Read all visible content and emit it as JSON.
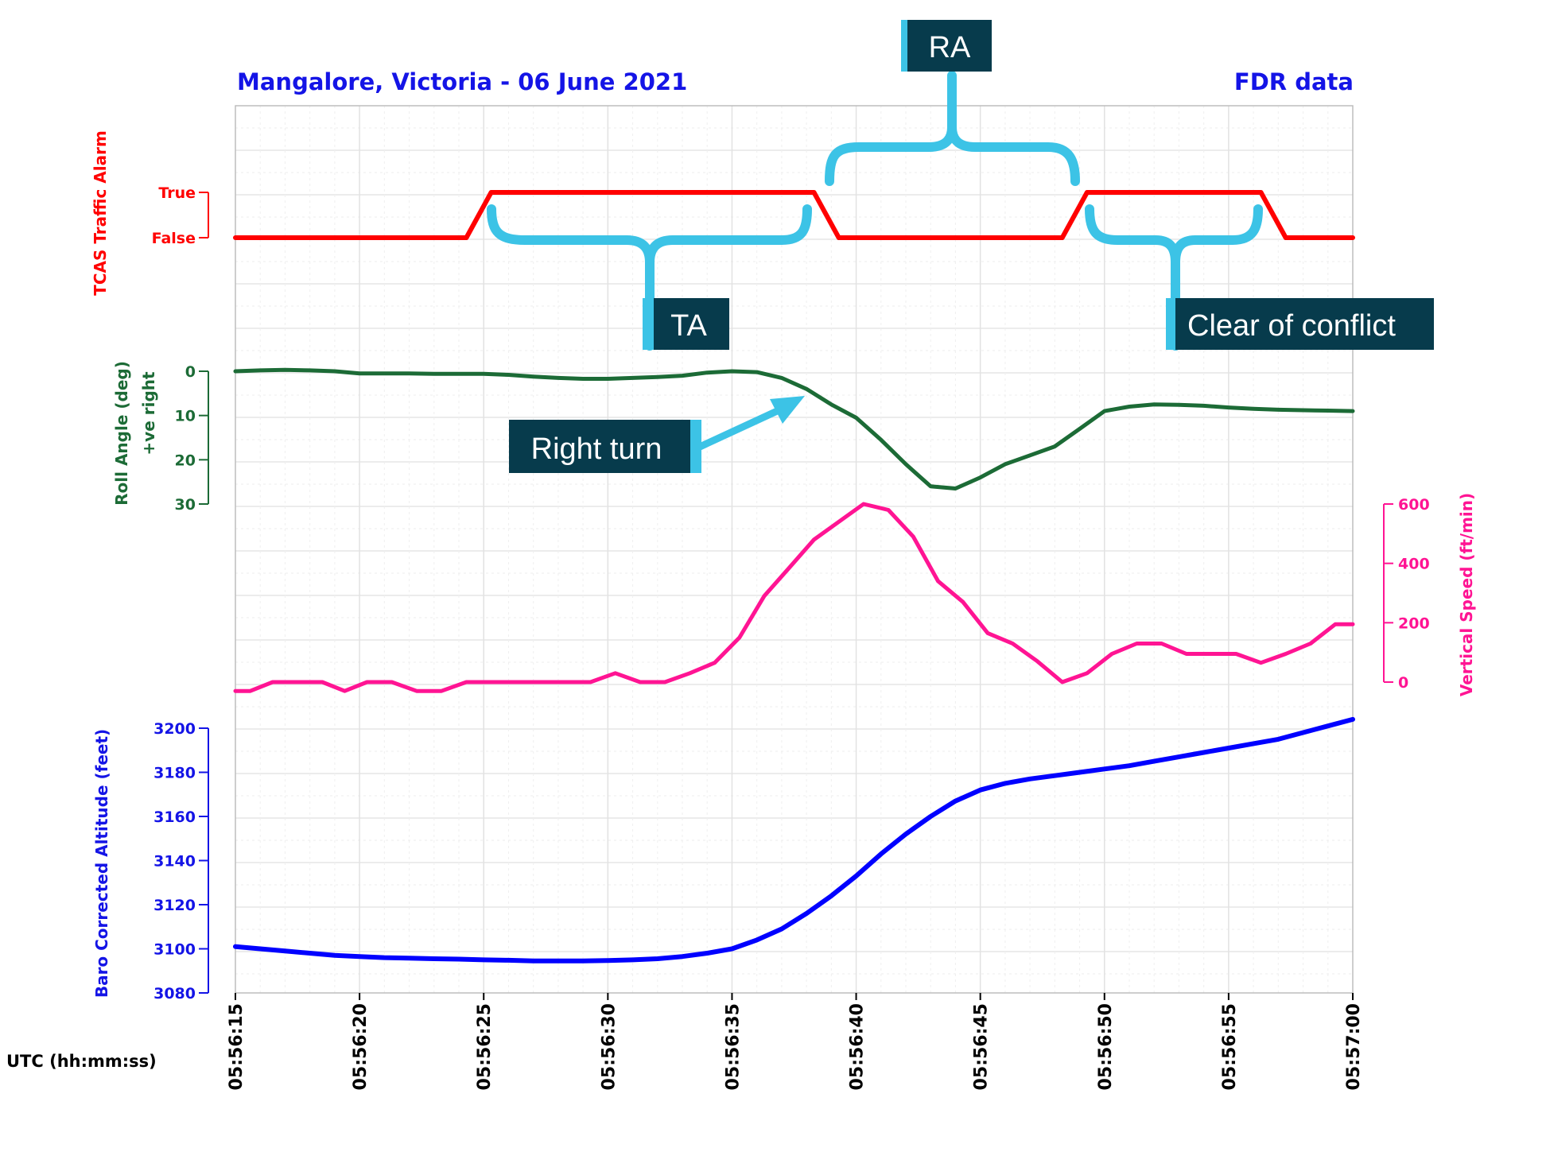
{
  "chart_data": {
    "type": "line",
    "title": "Mangalore, Victoria - 06 June 2021",
    "subtitle": "FDR data",
    "xlabel": "UTC (hh:mm:ss)",
    "x_ticks": [
      "05:56:15",
      "05:56:20",
      "05:56:25",
      "05:56:30",
      "05:56:35",
      "05:56:40",
      "05:56:45",
      "05:56:50",
      "05:56:55",
      "05:57:00"
    ],
    "x_range_seconds": [
      0,
      45
    ],
    "series": [
      {
        "name": "tcas",
        "label": "TCAS Traffic Alarm",
        "color": "#ff0000",
        "states": [
          "True",
          "False"
        ],
        "x": [
          0,
          9.3,
          10.3,
          23.3,
          24.3,
          33.3,
          34.3,
          41.3,
          42.3,
          45
        ],
        "values": [
          0,
          0,
          1,
          1,
          0,
          0,
          1,
          1,
          0,
          0
        ]
      },
      {
        "name": "roll",
        "label": "Roll Angle (deg)",
        "label2": "+ve right",
        "color": "#1c6b36",
        "ylim": [
          0,
          30
        ],
        "y_ticks": [
          "0",
          "10",
          "20",
          "30"
        ],
        "x": [
          0,
          1,
          2,
          3,
          4,
          5,
          6,
          7,
          8,
          9,
          10,
          11,
          12,
          13,
          14,
          15,
          16,
          17,
          18,
          19,
          20,
          21,
          22,
          23,
          24,
          25,
          26,
          27,
          28,
          29,
          30,
          31,
          32,
          33,
          34,
          35,
          36,
          37,
          38,
          39,
          40,
          41,
          42,
          43,
          44,
          45
        ],
        "values": [
          0,
          -0.2,
          -0.3,
          -0.2,
          0,
          0.5,
          0.5,
          0.5,
          0.6,
          0.6,
          0.6,
          0.8,
          1.2,
          1.5,
          1.7,
          1.7,
          1.5,
          1.3,
          1,
          0.3,
          0,
          0.2,
          1.5,
          4,
          7.5,
          10.5,
          15.5,
          21,
          26,
          26.5,
          24,
          21,
          19,
          17,
          13,
          9,
          8,
          7.5,
          7.6,
          7.8,
          8.2,
          8.5,
          8.7,
          8.8,
          8.9,
          9
        ]
      },
      {
        "name": "vspeed",
        "label": "Vertical Speed (ft/min)",
        "color": "#ff1493",
        "ylim": [
          0,
          600
        ],
        "y_ticks": [
          "0",
          "200",
          "400",
          "600"
        ],
        "x": [
          0,
          0.6,
          1.5,
          3.5,
          4.4,
          5.3,
          6.3,
          7.3,
          8.3,
          9.3,
          10.3,
          11.3,
          12.3,
          13.3,
          14.3,
          15.3,
          16.3,
          17.3,
          18.3,
          19.3,
          20.3,
          21.3,
          22.3,
          23.3,
          24.3,
          25.3,
          26.3,
          27.3,
          28.3,
          29.3,
          30.3,
          31.3,
          32.3,
          33.3,
          34.3,
          35.3,
          36.3,
          37.3,
          38.3,
          39.3,
          40.3,
          41.3,
          42.3,
          43.3,
          44.3,
          44.8,
          45
        ],
        "values": [
          -30,
          -30,
          0,
          0,
          -30,
          0,
          0,
          -30,
          -30,
          0,
          0,
          0,
          0,
          0,
          0,
          30,
          0,
          0,
          30,
          65,
          150,
          290,
          385,
          480,
          540,
          600,
          580,
          490,
          340,
          270,
          165,
          130,
          70,
          0,
          30,
          95,
          130,
          130,
          95,
          95,
          95,
          65,
          95,
          130,
          195,
          195,
          195
        ]
      },
      {
        "name": "altitude",
        "label": "Baro Corrected Altitude (feet)",
        "color": "#0000ff",
        "ylim": [
          3080,
          3200
        ],
        "y_ticks": [
          "3080",
          "3100",
          "3120",
          "3140",
          "3160",
          "3180",
          "3200"
        ],
        "x": [
          0,
          1,
          2,
          3,
          4,
          5,
          6,
          7,
          8,
          9,
          10,
          11,
          12,
          13,
          14,
          15,
          16,
          17,
          18,
          19,
          20,
          21,
          22,
          23,
          24,
          25,
          26,
          27,
          28,
          29,
          30,
          31,
          32,
          33,
          34,
          35,
          36,
          37,
          38,
          39,
          40,
          41,
          42,
          43,
          44,
          45
        ],
        "values": [
          3101,
          3100,
          3099,
          3098,
          3097,
          3096.5,
          3096,
          3095.8,
          3095.5,
          3095.3,
          3095,
          3094.8,
          3094.5,
          3094.5,
          3094.5,
          3094.7,
          3095,
          3095.5,
          3096.5,
          3098,
          3100,
          3104,
          3109,
          3116,
          3124,
          3133,
          3143,
          3152,
          3160,
          3167,
          3172,
          3175,
          3177,
          3178.5,
          3180,
          3181.5,
          3183,
          3185,
          3187,
          3189,
          3191,
          3193,
          3195,
          3198,
          3201,
          3204
        ]
      }
    ],
    "annotations": [
      "RA",
      "TA",
      "Clear of conflict",
      "Right turn"
    ]
  }
}
